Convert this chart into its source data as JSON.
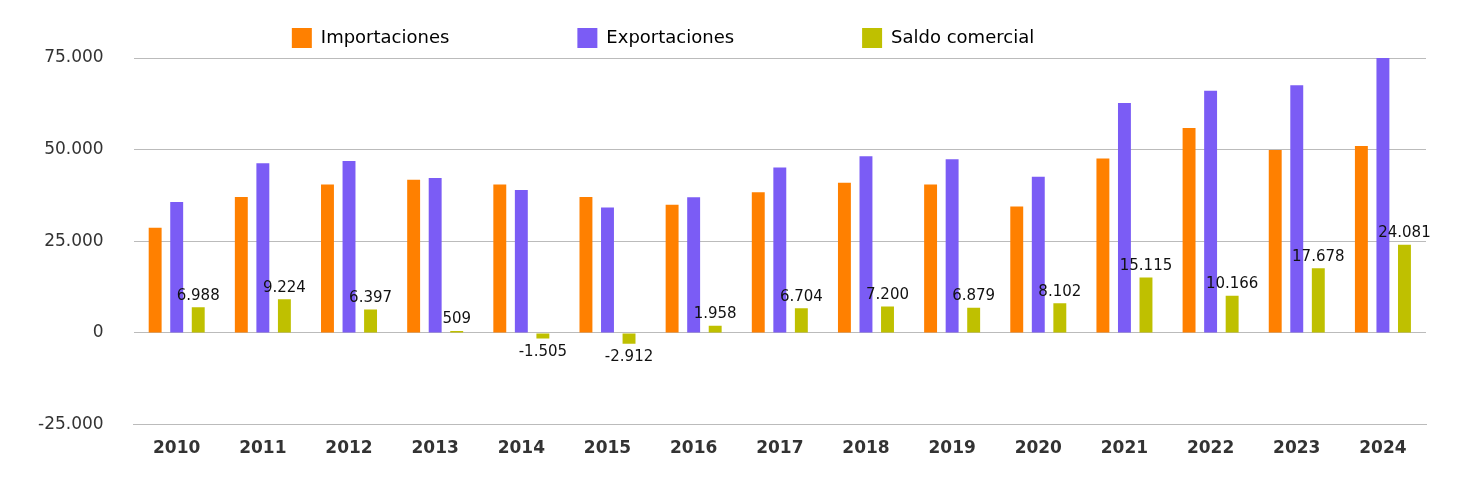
{
  "chart_data": {
    "type": "bar",
    "categories": [
      "2010",
      "2011",
      "2012",
      "2013",
      "2014",
      "2015",
      "2016",
      "2017",
      "2018",
      "2019",
      "2020",
      "2021",
      "2022",
      "2023",
      "2024"
    ],
    "series": [
      {
        "name": "Importaciones",
        "color": "#ff8000",
        "values": [
          28700,
          37100,
          40500,
          41800,
          40500,
          37100,
          35000,
          38400,
          41000,
          40500,
          34500,
          47600,
          55900,
          49900,
          51000
        ]
      },
      {
        "name": "Exportaciones",
        "color": "#7b5cf5",
        "values": [
          35700,
          46300,
          46900,
          42300,
          39000,
          34200,
          37000,
          45100,
          48200,
          47400,
          42600,
          62700,
          66100,
          67600,
          75000
        ]
      },
      {
        "name": "Saldo comercial",
        "color": "#bfc000",
        "values": [
          6988,
          9224,
          6397,
          509,
          -1505,
          -2912,
          1958,
          6704,
          7200,
          6879,
          8102,
          15115,
          10166,
          17678,
          24081
        ],
        "value_labels": [
          "6.988",
          "9.224",
          "6.397",
          "509",
          "-1.505",
          "-2.912",
          "1.958",
          "6.704",
          "7.200",
          "6.879",
          "8.102",
          "15.115",
          "10.166",
          "17.678",
          "24.081"
        ]
      }
    ],
    "ylim": [
      -25000,
      75000
    ],
    "yticks": [
      {
        "value": -25000,
        "label": "-25.000"
      },
      {
        "value": 0,
        "label": "0"
      },
      {
        "value": 25000,
        "label": "25.000"
      },
      {
        "value": 50000,
        "label": "50.000"
      },
      {
        "value": 75000,
        "label": "75.000"
      }
    ],
    "grid": "y",
    "legend": "top"
  }
}
